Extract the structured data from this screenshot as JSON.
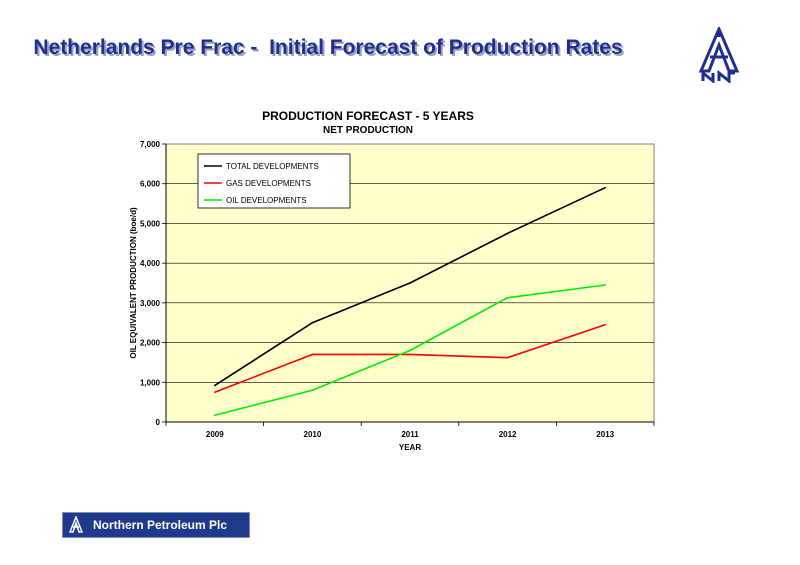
{
  "slide": {
    "title": "Netherlands Pre Frac -  Initial Forecast of Production Rates"
  },
  "branding": {
    "company_name": "Northern Petroleum Plc",
    "brand_color": "#1f3a8a",
    "logo_icon": "northern-petroleum-derrick-logo"
  },
  "colors": {
    "plot_background": "#ffffcc",
    "total": "#000000",
    "gas": "#ff0000",
    "oil": "#00ee00"
  },
  "chart_data": {
    "type": "line",
    "title": "PRODUCTION FORECAST - 5 YEARS",
    "subtitle": "NET PRODUCTION",
    "xlabel": "YEAR",
    "ylabel": "OIL EQUIVALENT PRODUCTION (boe/d)",
    "categories": [
      "2009",
      "2010",
      "2011",
      "2012",
      "2013"
    ],
    "ylim": [
      0,
      7000
    ],
    "yticks": [
      "0",
      "1,000",
      "2,000",
      "3,000",
      "4,000",
      "5,000",
      "6,000",
      "7,000"
    ],
    "grid": true,
    "legend_position": "top-left",
    "series": [
      {
        "name": "TOTAL DEVELOPMENTS",
        "color": "#000000",
        "values": [
          920,
          2500,
          3500,
          4750,
          5900
        ]
      },
      {
        "name": "GAS DEVELOPMENTS",
        "color": "#ff0000",
        "values": [
          750,
          1700,
          1700,
          1620,
          2450
        ]
      },
      {
        "name": "OIL DEVELOPMENTS",
        "color": "#00ee00",
        "values": [
          170,
          800,
          1800,
          3130,
          3450
        ]
      }
    ]
  }
}
